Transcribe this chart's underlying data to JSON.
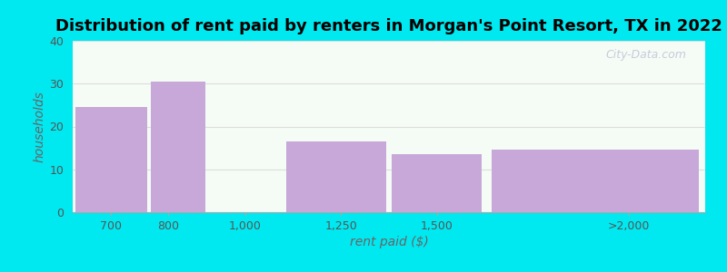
{
  "title": "Distribution of rent paid by renters in Morgan's Point Resort, TX in 2022",
  "categories": [
    "700",
    "800",
    "1,000",
    "1,250",
    "1,500",
    ">2,000"
  ],
  "values": [
    24.5,
    30.5,
    0,
    16.5,
    13.5,
    14.5
  ],
  "bar_color": "#c8a8d8",
  "xlabel": "rent paid ($)",
  "ylabel": "households",
  "ylim": [
    0,
    40
  ],
  "yticks": [
    0,
    10,
    20,
    30,
    40
  ],
  "background_outer": "#00e8f0",
  "background_inner_top": "#eaf5ea",
  "background_inner_bottom": "#f5fcf5",
  "title_fontsize": 13,
  "axis_label_fontsize": 10,
  "tick_fontsize": 9,
  "watermark_text": "City-Data.com",
  "bar_edges": [
    550,
    750,
    900,
    1100,
    1375,
    1625,
    2200
  ],
  "tick_positions": [
    650,
    800,
    1000,
    1250,
    1500,
    2000
  ],
  "tick_labels": [
    "700",
    "800",
    "1,000",
    "1,250",
    "1,500",
    ">2,000"
  ]
}
